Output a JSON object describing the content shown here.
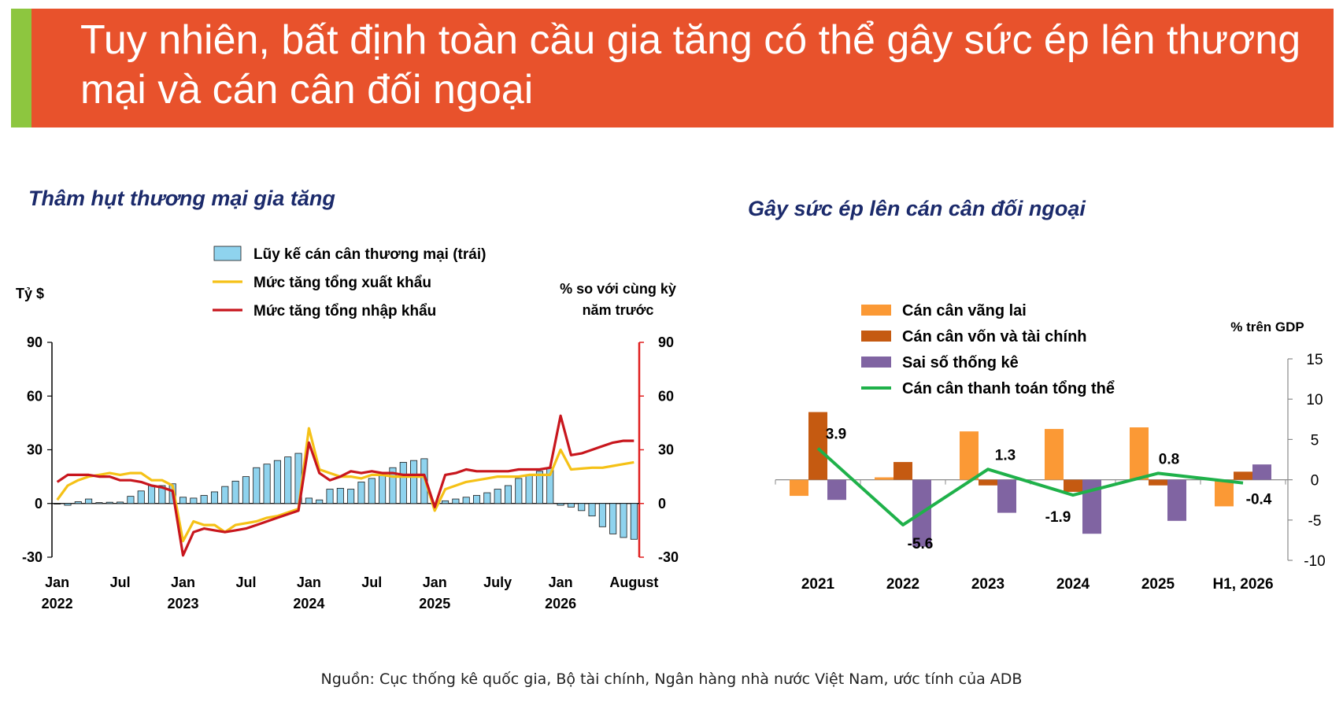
{
  "banner": {
    "title": "Tuy nhiên, bất định toàn cầu gia tăng có thể gây sức ép lên thương mại và cán cân đối ngoại",
    "color": "#e8522c",
    "accent_color": "#8dc63f"
  },
  "source": "Nguồn: Cục thống kê quốc gia, Bộ tài chính, Ngân hàng nhà nước Việt Nam, ước tính của ADB",
  "chart_data": [
    {
      "type": "bar+line",
      "title": "Thâm hụt thương mại gia tăng",
      "y_left_label": "Tỷ $",
      "y_right_label": [
        "% so với cùng kỳ",
        "năm trước"
      ],
      "ylim_left": [
        -30,
        90
      ],
      "ylim_right": [
        -30,
        90
      ],
      "yticks": [
        90,
        60,
        30,
        0,
        -30
      ],
      "x_ticks": [
        {
          "month": 1,
          "line1": "Jan",
          "line2": "2022"
        },
        {
          "month": 7,
          "line1": "Jul",
          "line2": ""
        },
        {
          "month": 13,
          "line1": "Jan",
          "line2": "2023"
        },
        {
          "month": 19,
          "line1": "Jul",
          "line2": ""
        },
        {
          "month": 25,
          "line1": "Jan",
          "line2": "2024"
        },
        {
          "month": 31,
          "line1": "Jul",
          "line2": ""
        },
        {
          "month": 37,
          "line1": "Jan",
          "line2": "2025"
        },
        {
          "month": 43,
          "line1": "July",
          "line2": ""
        },
        {
          "month": 49,
          "line1": "Jan",
          "line2": "2026"
        },
        {
          "month": 56,
          "line1": "August",
          "line2": ""
        }
      ],
      "legend": [
        {
          "label": "Lũy kế cán cân thương mại (trái)",
          "kind": "bar",
          "color": "#8fd3ee"
        },
        {
          "label": "Mức tăng tổng xuất khẩu",
          "kind": "line",
          "color": "#f5c116"
        },
        {
          "label": "Mức tăng tổng nhập khẩu",
          "kind": "line",
          "color": "#c8161d"
        }
      ],
      "series": [
        {
          "name": "Lũy kế cán cân thương mại (trái)",
          "kind": "bar",
          "values": [
            0,
            -1,
            1,
            2.5,
            0.5,
            0.7,
            0.8,
            4,
            7,
            10,
            10,
            11,
            3.5,
            3,
            4.5,
            6.5,
            9.5,
            12.5,
            15,
            20,
            22,
            24,
            26,
            28,
            3,
            2,
            8,
            8.5,
            8,
            12,
            14,
            17,
            20,
            23,
            24,
            25,
            0,
            1.5,
            2.5,
            3.5,
            4.5,
            6,
            8,
            10,
            14,
            16,
            18,
            20,
            -1,
            -2,
            -4,
            -7,
            -13,
            -17,
            -19,
            -20
          ]
        },
        {
          "name": "Mức tăng tổng xuất khẩu",
          "kind": "line",
          "values": [
            2,
            10,
            13,
            15,
            16,
            17,
            16,
            17,
            17,
            13,
            13,
            10,
            -21,
            -10,
            -12,
            -12,
            -16,
            -12,
            -11,
            -10,
            -8,
            -7,
            -5,
            -3,
            42,
            19,
            17,
            15,
            15,
            14,
            16,
            16,
            15,
            15,
            15,
            15,
            -4,
            8,
            10,
            12,
            13,
            14,
            15,
            15,
            15,
            16,
            16,
            16,
            30,
            19,
            19.5,
            20,
            20,
            21,
            22,
            23
          ]
        },
        {
          "name": "Mức tăng tổng nhập khẩu",
          "kind": "line",
          "values": [
            12,
            16,
            16,
            16,
            15,
            15,
            13,
            13,
            12,
            10,
            9,
            7,
            -29,
            -16,
            -14,
            -15,
            -16,
            -15,
            -14,
            -12,
            -10,
            -8,
            -6,
            -4,
            34,
            17,
            13,
            15,
            18,
            17,
            18,
            17,
            17,
            16,
            16,
            16,
            -2,
            16,
            17,
            19,
            18,
            18,
            18,
            18,
            19,
            19,
            19,
            20,
            49,
            27,
            28,
            30,
            32,
            34,
            35,
            35
          ]
        }
      ]
    },
    {
      "type": "bar+line",
      "title": "Gây sức ép lên cán cân đối ngoại",
      "y_right_label": "% trên GDP",
      "ylim": [
        -10,
        15
      ],
      "yticks": [
        15,
        10,
        5,
        0,
        -5,
        -10
      ],
      "categories": [
        "2021",
        "2022",
        "2023",
        "2024",
        "2025",
        "H1, 2026"
      ],
      "legend": [
        {
          "label": "Cán cân vãng lai",
          "kind": "bar",
          "color": "#fb9935"
        },
        {
          "label": "Cán cân vốn và tài chính",
          "kind": "bar",
          "color": "#c55a11"
        },
        {
          "label": "Sai số thống kê",
          "kind": "bar",
          "color": "#8064a2"
        },
        {
          "label": "Cán cân thanh toán  tổng thể",
          "kind": "line",
          "color": "#1fb14a"
        }
      ],
      "series": [
        {
          "name": "Cán cân vãng lai",
          "kind": "bar",
          "values": [
            -2,
            0.3,
            6,
            6.3,
            6.5,
            -3.3
          ]
        },
        {
          "name": "Cán cân vốn và tài chính",
          "kind": "bar",
          "values": [
            8.4,
            2.2,
            -0.7,
            -1.5,
            -0.7,
            1
          ]
        },
        {
          "name": "Sai số thống kê",
          "kind": "bar",
          "values": [
            -2.5,
            -8.3,
            -4.1,
            -6.7,
            -5.1,
            1.9
          ]
        },
        {
          "name": "Cán cân thanh toán  tổng thể",
          "kind": "line",
          "values": [
            3.9,
            -5.6,
            1.3,
            -1.9,
            0.8,
            -0.4
          ],
          "labels": [
            "3.9",
            "-5.6",
            "1.3",
            "-1.9",
            "0.8",
            "-0.4"
          ]
        }
      ]
    }
  ]
}
